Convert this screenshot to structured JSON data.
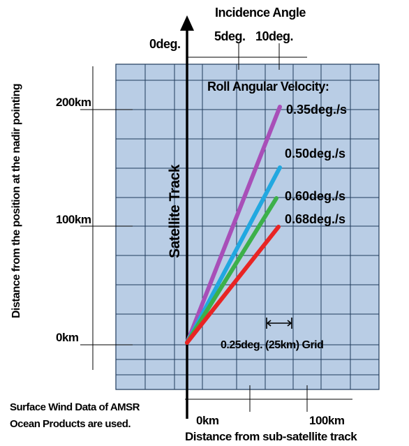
{
  "header": {
    "title": "Incidence Angle",
    "angle_0": "0deg.",
    "angle_5": "5deg.",
    "angle_10": "10deg."
  },
  "y_axis": {
    "label": "Distance from the position at the nadir pointing",
    "ticks": [
      "200km",
      "100km",
      "0km"
    ]
  },
  "x_axis": {
    "label": "Distance from sub-satellite track",
    "ticks": [
      "0km",
      "100km"
    ]
  },
  "track_label": "Satellite Track",
  "legend": {
    "title": "Roll Angular Velocity:",
    "entries": [
      {
        "label": "0.35deg./s",
        "color": "#a84fb8",
        "value": 0.35
      },
      {
        "label": "0.50deg./s",
        "color": "#22a8e0",
        "value": 0.5
      },
      {
        "label": "0.60deg./s",
        "color": "#3cb04a",
        "value": 0.6
      },
      {
        "label": "0.68deg./s",
        "color": "#e82424",
        "value": 0.68
      }
    ]
  },
  "grid_note": "0.25deg. (25km) Grid",
  "footnote": {
    "line1": "Surface Wind Data of AMSR",
    "line2": "Ocean Products are used."
  },
  "colors": {
    "grid_fill": "#b9cde5",
    "grid_line": "#1f3a5a"
  }
}
